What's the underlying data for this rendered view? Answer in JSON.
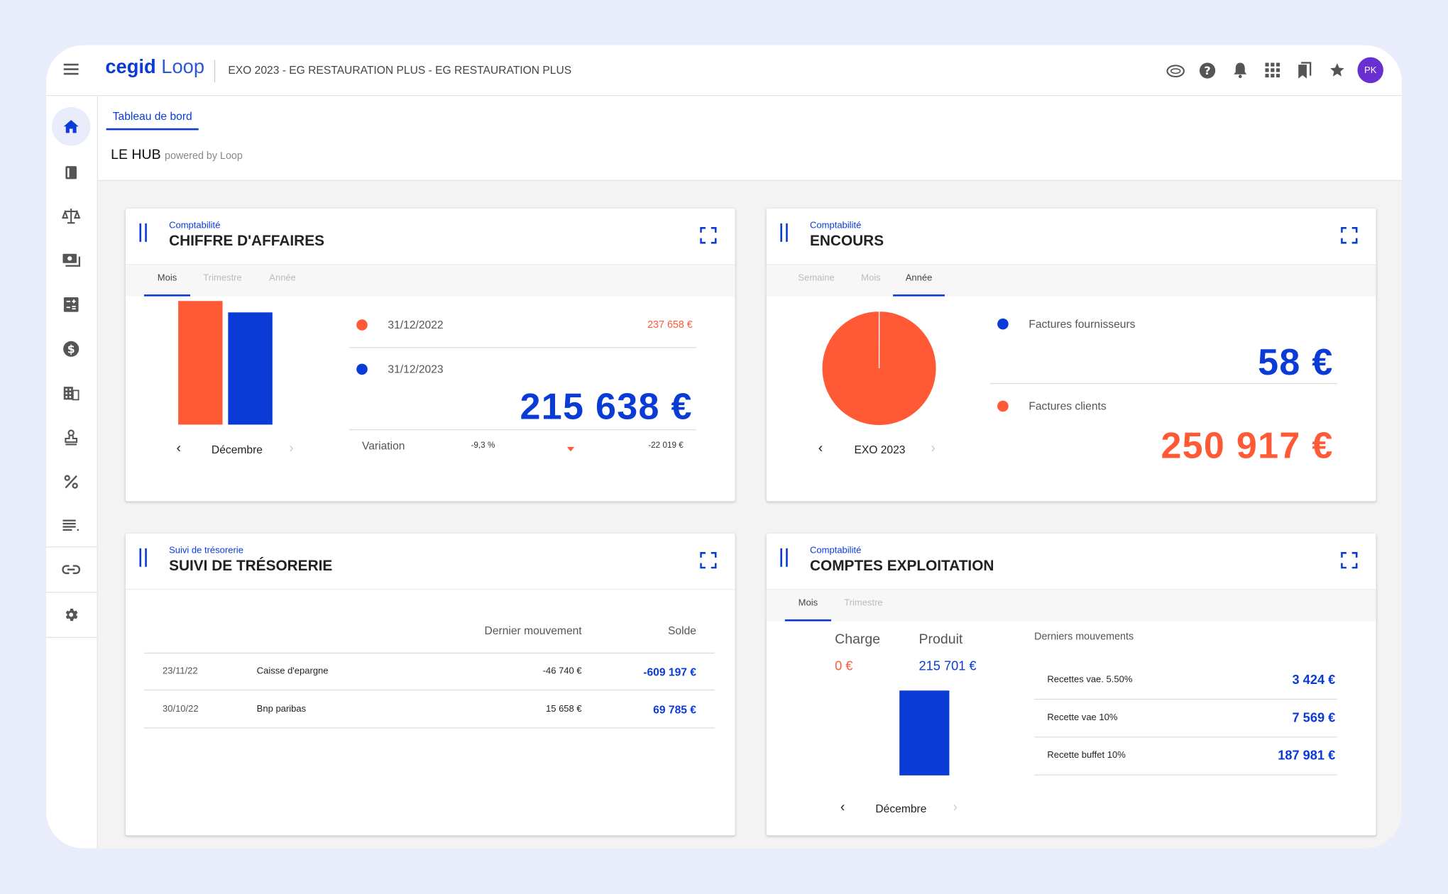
{
  "header": {
    "brand_bold": "cegid",
    "brand_light": "Loop",
    "context": "EXO 2023 - EG RESTAURATION PLUS - EG RESTAURATION PLUS",
    "avatar_initials": "PK"
  },
  "tabs": {
    "active": "Tableau de bord"
  },
  "hub": {
    "title": "LE HUB",
    "subtitle": "powered by Loop"
  },
  "colors": {
    "primary": "#0a3bd6",
    "accent": "#ff5a35"
  },
  "sidebar_icons": [
    "home-icon",
    "book-icon",
    "balance-icon",
    "cash-icon",
    "calculator-icon",
    "dollar-icon",
    "building-icon",
    "stamp-icon",
    "percent-icon",
    "list-icon",
    "link-icon",
    "gear-icon"
  ],
  "ca": {
    "category": "Comptabilité",
    "title": "CHIFFRE D'AFFAIRES",
    "tabs": [
      "Mois",
      "Trimestre",
      "Année"
    ],
    "active_tab": "Mois",
    "period": "Décembre",
    "date1": "31/12/2022",
    "amount1": "237 658 €",
    "date2": "31/12/2023",
    "amount2": "215 638 €",
    "variation_label": "Variation",
    "variation_pct": "-9,3 %",
    "variation_amount": "-22 019 €"
  },
  "encours": {
    "category": "Comptabilité",
    "title": "ENCOURS",
    "tabs": [
      "Semaine",
      "Mois",
      "Année"
    ],
    "active_tab": "Année",
    "period": "EXO 2023",
    "supplier_label": "Factures fournisseurs",
    "supplier_amount": "58 €",
    "client_label": "Factures clients",
    "client_amount": "250 917 €"
  },
  "tresorerie": {
    "category": "Suivi de trésorerie",
    "title": "SUIVI DE TRÉSORERIE",
    "col_movement": "Dernier mouvement",
    "col_balance": "Solde",
    "rows": [
      {
        "date": "23/11/22",
        "bank": "Caisse d'epargne",
        "movement": "-46 740 €",
        "balance": "-609 197 €"
      },
      {
        "date": "30/10/22",
        "bank": "Bnp paribas",
        "movement": "15 658 €",
        "balance": "69 785 €"
      }
    ]
  },
  "exploitation": {
    "category": "Comptabilité",
    "title": "COMPTES EXPLOITATION",
    "tabs": [
      "Mois",
      "Trimestre"
    ],
    "active_tab": "Mois",
    "charge_label": "Charge",
    "charge_value": "0 €",
    "produit_label": "Produit",
    "produit_value": "215 701 €",
    "period": "Décembre",
    "movements_title": "Derniers mouvements",
    "movements": [
      {
        "label": "Recettes vae. 5.50%",
        "amount": "3 424 €"
      },
      {
        "label": "Recette vae 10%",
        "amount": "7 569 €"
      },
      {
        "label": "Recette buffet 10%",
        "amount": "187 981 €"
      }
    ]
  },
  "chart_data": [
    {
      "type": "bar",
      "categories": [
        "31/12/2022",
        "31/12/2023"
      ],
      "values": [
        237658,
        215638
      ],
      "colors": [
        "#ff5a35",
        "#0a3bd6"
      ],
      "title": "",
      "xlabel": "",
      "ylabel": ""
    },
    {
      "type": "pie",
      "categories": [
        "Factures fournisseurs",
        "Factures clients"
      ],
      "values": [
        58,
        250917
      ],
      "colors": [
        "#0a3bd6",
        "#ff5a35"
      ],
      "title": ""
    },
    {
      "type": "bar",
      "categories": [
        "Charge",
        "Produit"
      ],
      "values": [
        0,
        215701
      ],
      "colors": [
        "#ff5a35",
        "#0a3bd6"
      ],
      "title": "",
      "xlabel": "",
      "ylabel": ""
    }
  ]
}
